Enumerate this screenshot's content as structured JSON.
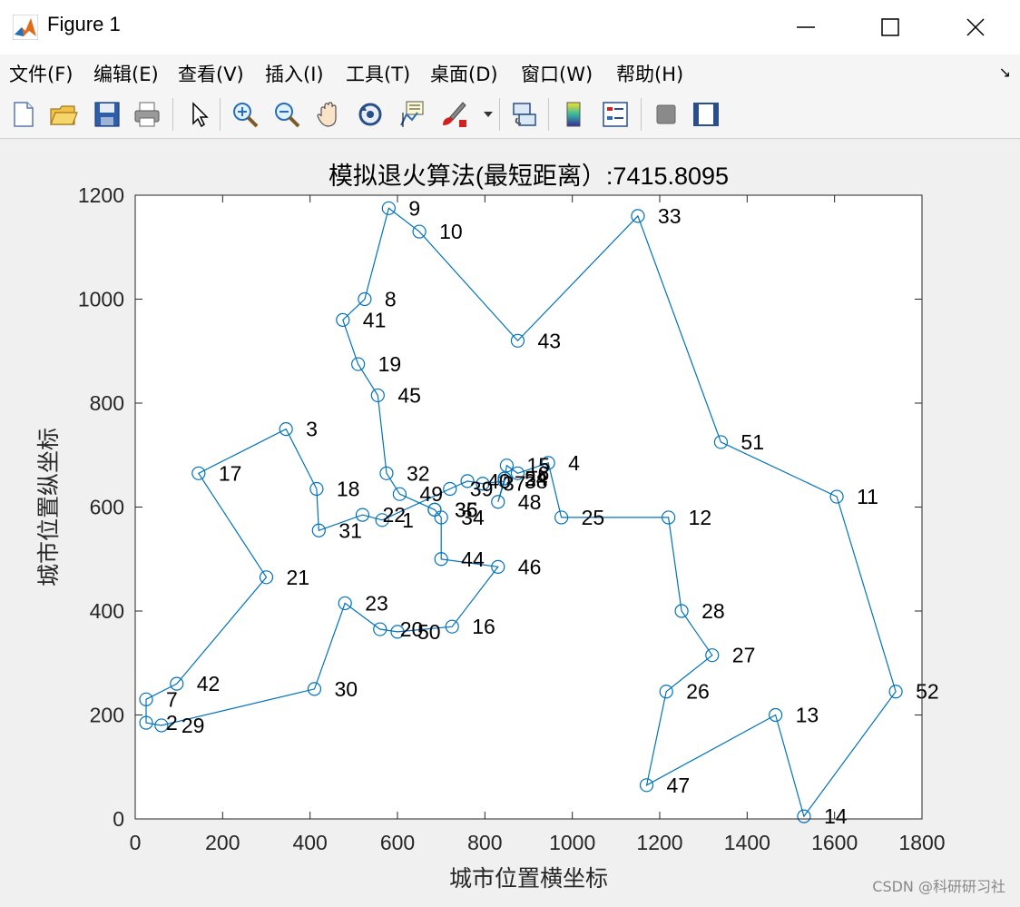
{
  "window": {
    "title": "Figure 1",
    "minimize_label": "—",
    "maximize_label": "☐",
    "close_label": "✕"
  },
  "menu": {
    "items": [
      "文件(F)",
      "编辑(E)",
      "查看(V)",
      "插入(I)",
      "工具(T)",
      "桌面(D)",
      "窗口(W)",
      "帮助(H)"
    ],
    "corner_label": "↘"
  },
  "toolbar": {
    "icons": [
      "new-figure-icon",
      "open-icon",
      "save-icon",
      "print-icon",
      "pointer-icon",
      "zoom-in-icon",
      "zoom-out-icon",
      "pan-icon",
      "rotate-icon",
      "data-cursor-icon",
      "brush-icon",
      "link-plot-icon",
      "colorbar-icon",
      "legend-icon",
      "hide-plot-tools-icon",
      "show-plot-tools-icon"
    ]
  },
  "colors": {
    "line": "#0072BD",
    "axes_bg": "#ffffff",
    "figure_bg": "#f0f0f0"
  },
  "chart_data": {
    "type": "line",
    "title": "模拟退火算法(最短距离）:7415.8095",
    "xlabel": "城市位置横坐标",
    "ylabel": "城市位置纵坐标",
    "xlim": [
      0,
      1800
    ],
    "ylim": [
      0,
      1200
    ],
    "xticks": [
      0,
      200,
      400,
      600,
      800,
      1000,
      1200,
      1400,
      1600,
      1800
    ],
    "yticks": [
      0,
      200,
      400,
      600,
      800,
      1000,
      1200
    ],
    "grid": false,
    "route": [
      [
        1,
        565,
        575
      ],
      [
        22,
        520,
        585
      ],
      [
        31,
        420,
        555
      ],
      [
        18,
        415,
        635
      ],
      [
        3,
        345,
        750
      ],
      [
        17,
        145,
        665
      ],
      [
        21,
        300,
        465
      ],
      [
        42,
        95,
        260
      ],
      [
        7,
        25,
        230
      ],
      [
        2,
        25,
        185
      ],
      [
        29,
        60,
        180
      ],
      [
        30,
        410,
        250
      ],
      [
        23,
        480,
        415
      ],
      [
        20,
        560,
        365
      ],
      [
        50,
        600,
        360
      ],
      [
        16,
        725,
        370
      ],
      [
        46,
        830,
        485
      ],
      [
        44,
        700,
        500
      ],
      [
        34,
        700,
        580
      ],
      [
        35,
        685,
        595
      ],
      [
        36,
        685,
        595
      ],
      [
        49,
        605,
        625
      ],
      [
        32,
        575,
        665
      ],
      [
        45,
        555,
        815
      ],
      [
        19,
        510,
        875
      ],
      [
        41,
        475,
        960
      ],
      [
        8,
        525,
        1000
      ],
      [
        9,
        580,
        1175
      ],
      [
        10,
        650,
        1130
      ],
      [
        43,
        875,
        920
      ],
      [
        33,
        1150,
        1160
      ],
      [
        51,
        1340,
        725
      ],
      [
        11,
        1605,
        620
      ],
      [
        52,
        1740,
        245
      ],
      [
        14,
        1530,
        5
      ],
      [
        13,
        1465,
        200
      ],
      [
        47,
        1170,
        65
      ],
      [
        26,
        1215,
        245
      ],
      [
        27,
        1320,
        315
      ],
      [
        28,
        1250,
        400
      ],
      [
        12,
        1220,
        580
      ],
      [
        25,
        975,
        580
      ],
      [
        4,
        945,
        685
      ],
      [
        6,
        875,
        665
      ],
      [
        15,
        850,
        680
      ],
      [
        5,
        845,
        655
      ],
      [
        24,
        845,
        655
      ],
      [
        48,
        830,
        610
      ],
      [
        38,
        845,
        650
      ],
      [
        37,
        795,
        645
      ],
      [
        40,
        760,
        650
      ],
      [
        39,
        720,
        635
      ],
      [
        1,
        565,
        575
      ]
    ],
    "labels": [
      {
        "text": "1",
        "x": 565,
        "y": 575
      },
      {
        "text": "2",
        "x": 25,
        "y": 185
      },
      {
        "text": "3",
        "x": 345,
        "y": 750
      },
      {
        "text": "4",
        "x": 945,
        "y": 685
      },
      {
        "text": "5",
        "x": 845,
        "y": 655
      },
      {
        "text": "6",
        "x": 875,
        "y": 665
      },
      {
        "text": "7",
        "x": 25,
        "y": 230
      },
      {
        "text": "8",
        "x": 525,
        "y": 1000
      },
      {
        "text": "9",
        "x": 580,
        "y": 1175
      },
      {
        "text": "10",
        "x": 650,
        "y": 1130
      },
      {
        "text": "11",
        "x": 1605,
        "y": 620
      },
      {
        "text": "12",
        "x": 1220,
        "y": 580
      },
      {
        "text": "13",
        "x": 1465,
        "y": 200
      },
      {
        "text": "14",
        "x": 1530,
        "y": 5
      },
      {
        "text": "15",
        "x": 850,
        "y": 680
      },
      {
        "text": "16",
        "x": 725,
        "y": 370
      },
      {
        "text": "17",
        "x": 145,
        "y": 665
      },
      {
        "text": "18",
        "x": 415,
        "y": 635
      },
      {
        "text": "19",
        "x": 510,
        "y": 875
      },
      {
        "text": "20",
        "x": 560,
        "y": 365
      },
      {
        "text": "21",
        "x": 300,
        "y": 465
      },
      {
        "text": "22",
        "x": 520,
        "y": 585
      },
      {
        "text": "23",
        "x": 480,
        "y": 415
      },
      {
        "text": "24",
        "x": 845,
        "y": 655
      },
      {
        "text": "25",
        "x": 975,
        "y": 580
      },
      {
        "text": "26",
        "x": 1215,
        "y": 245
      },
      {
        "text": "27",
        "x": 1320,
        "y": 315
      },
      {
        "text": "28",
        "x": 1250,
        "y": 400
      },
      {
        "text": "29",
        "x": 60,
        "y": 180
      },
      {
        "text": "30",
        "x": 410,
        "y": 250
      },
      {
        "text": "31",
        "x": 420,
        "y": 555
      },
      {
        "text": "32",
        "x": 575,
        "y": 665
      },
      {
        "text": "33",
        "x": 1150,
        "y": 1160
      },
      {
        "text": "34",
        "x": 700,
        "y": 580
      },
      {
        "text": "35",
        "x": 685,
        "y": 595
      },
      {
        "text": "36",
        "x": 685,
        "y": 595
      },
      {
        "text": "37",
        "x": 795,
        "y": 645
      },
      {
        "text": "38",
        "x": 845,
        "y": 650
      },
      {
        "text": "39",
        "x": 720,
        "y": 635
      },
      {
        "text": "40",
        "x": 760,
        "y": 650
      },
      {
        "text": "41",
        "x": 475,
        "y": 960
      },
      {
        "text": "42",
        "x": 95,
        "y": 260
      },
      {
        "text": "43",
        "x": 875,
        "y": 920
      },
      {
        "text": "44",
        "x": 700,
        "y": 500
      },
      {
        "text": "45",
        "x": 555,
        "y": 815
      },
      {
        "text": "46",
        "x": 830,
        "y": 485
      },
      {
        "text": "47",
        "x": 1170,
        "y": 65
      },
      {
        "text": "48",
        "x": 830,
        "y": 610
      },
      {
        "text": "49",
        "x": 605,
        "y": 625
      },
      {
        "text": "50",
        "x": 600,
        "y": 360
      },
      {
        "text": "51",
        "x": 1340,
        "y": 725
      },
      {
        "text": "52",
        "x": 1740,
        "y": 245
      }
    ]
  },
  "watermark": "CSDN @科研研习社"
}
